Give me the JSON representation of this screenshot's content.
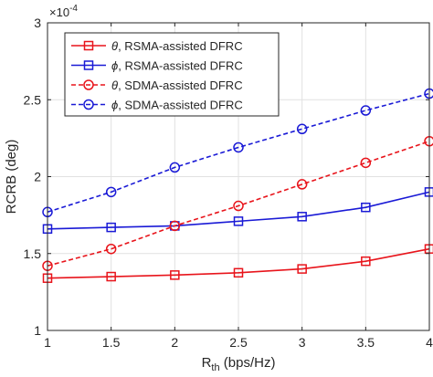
{
  "chart_data": {
    "type": "line",
    "xlabel": "R",
    "xlabel_sub": "th",
    "xlabel_unit": " (bps/Hz)",
    "ylabel": "RCRB (deg)",
    "y_multiplier": {
      "base": "×10",
      "exponent": "-4"
    },
    "x": [
      1,
      1.5,
      2,
      2.5,
      3,
      3.5,
      4
    ],
    "xlim": [
      1,
      4
    ],
    "ylim": [
      1,
      3
    ],
    "xticks": [
      "1",
      "1.5",
      "2",
      "2.5",
      "3",
      "3.5",
      "4"
    ],
    "xtick_values": [
      1,
      1.5,
      2,
      2.5,
      3,
      3.5,
      4
    ],
    "yticks": [
      "1",
      "1.5",
      "2",
      "2.5",
      "3"
    ],
    "ytick_values": [
      1,
      1.5,
      2,
      2.5,
      3
    ],
    "grid": true,
    "legend_position": "top-left",
    "series": [
      {
        "name": "θ, RSMA-assisted DFRC",
        "symbol": "θ",
        "label_rest": ", RSMA-assisted DFRC",
        "color": "#e8141b",
        "line": "solid",
        "marker": "square",
        "values": [
          1.34,
          1.35,
          1.36,
          1.375,
          1.4,
          1.45,
          1.53
        ]
      },
      {
        "name": "ϕ, RSMA-assisted DFRC",
        "symbol": "ϕ",
        "label_rest": ", RSMA-assisted DFRC",
        "color": "#1a1ad6",
        "line": "solid",
        "marker": "square",
        "values": [
          1.66,
          1.67,
          1.68,
          1.71,
          1.74,
          1.8,
          1.9
        ]
      },
      {
        "name": "θ, SDMA-assisted DFRC",
        "symbol": "θ",
        "label_rest": ", SDMA-assisted DFRC",
        "color": "#e8141b",
        "line": "dashed",
        "marker": "circle",
        "values": [
          1.42,
          1.53,
          1.68,
          1.81,
          1.95,
          2.09,
          2.23
        ]
      },
      {
        "name": "ϕ, SDMA-assisted DFRC",
        "symbol": "ϕ",
        "label_rest": ", SDMA-assisted DFRC",
        "color": "#1a1ad6",
        "line": "dashed",
        "marker": "circle",
        "values": [
          1.77,
          1.9,
          2.06,
          2.19,
          2.31,
          2.43,
          2.54
        ]
      }
    ]
  }
}
